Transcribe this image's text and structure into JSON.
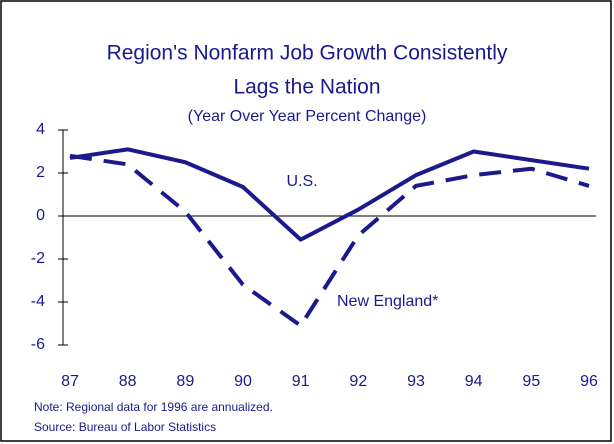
{
  "chart_data": {
    "type": "line",
    "title_lines": [
      "Region's Nonfarm Job Growth Consistently",
      "Lags the Nation"
    ],
    "subtitle": "(Year Over Year Percent Change)",
    "categories": [
      "87",
      "88",
      "89",
      "90",
      "91",
      "92",
      "93",
      "94",
      "95",
      "96"
    ],
    "series": [
      {
        "name": "U.S.",
        "color": "#1a1a8c",
        "dash": false,
        "values": [
          2.7,
          3.1,
          2.5,
          1.35,
          -1.1,
          0.3,
          1.9,
          3.0,
          2.6,
          2.2
        ]
      },
      {
        "name": "New England*",
        "color": "#1a1a8c",
        "dash": true,
        "values": [
          2.8,
          2.4,
          0.2,
          -3.2,
          -5.1,
          -0.9,
          1.4,
          1.9,
          2.2,
          1.4
        ]
      }
    ],
    "ylim": [
      -6,
      4
    ],
    "yticks": [
      -6,
      -4,
      -2,
      0,
      2,
      4
    ],
    "notes": [
      "Note:  Regional data for 1996 are annualized.",
      "Source:  Bureau of Labor Statistics"
    ]
  }
}
